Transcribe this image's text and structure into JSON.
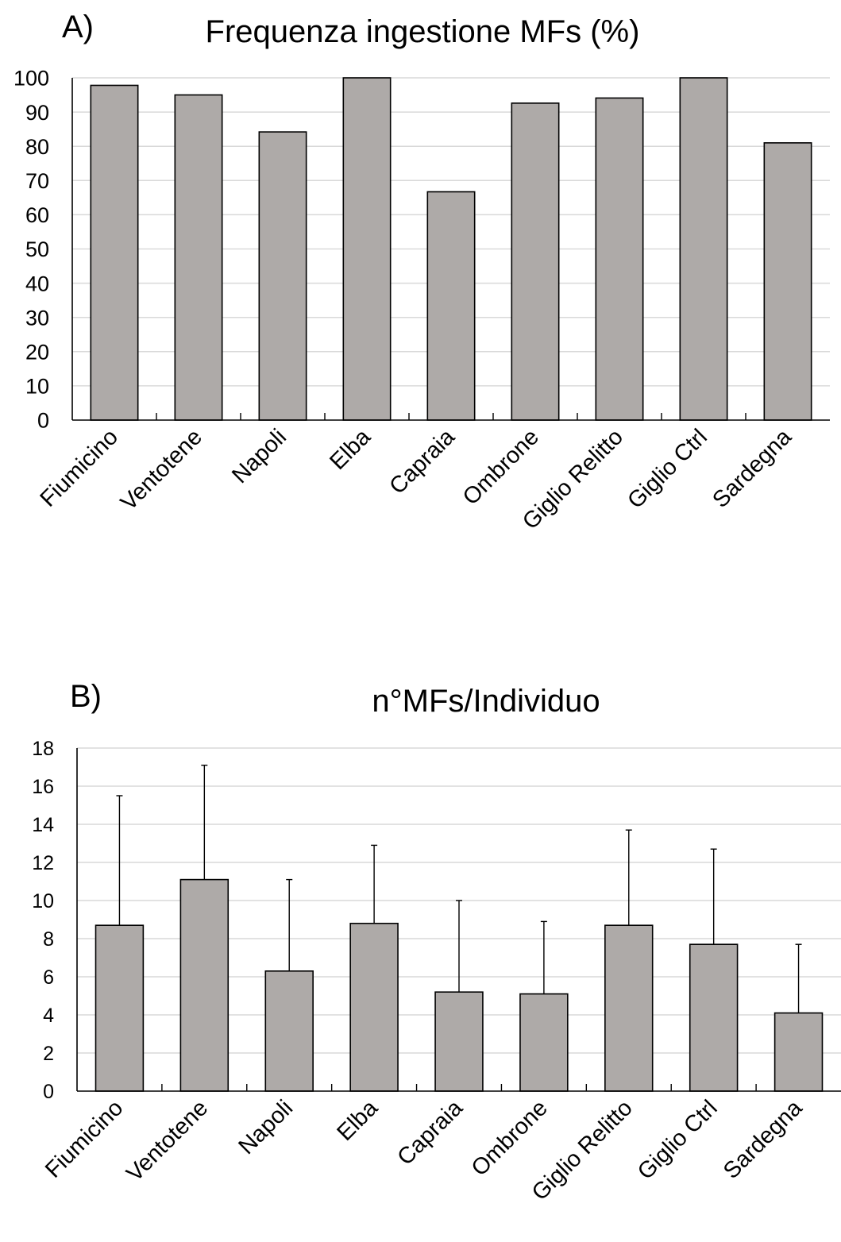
{
  "chart_data": [
    {
      "type": "bar",
      "panel_label": "A)",
      "title": "Frequenza ingestione MFs (%)",
      "xlabel": "",
      "ylabel": "",
      "categories": [
        "Fiumicino",
        "Ventotene",
        "Napoli",
        "Elba",
        "Capraia",
        "Ombrone",
        "Giglio Relitto",
        "Giglio Ctrl",
        "Sardegna"
      ],
      "values": [
        97.8,
        95.0,
        84.2,
        100,
        66.7,
        92.6,
        94.1,
        100,
        81.0
      ],
      "ylim": [
        0,
        100
      ],
      "yticks": [
        "0",
        "10",
        "20",
        "30",
        "40",
        "50",
        "60",
        "70",
        "80",
        "90",
        "100"
      ],
      "grid": true,
      "legend": "none",
      "bar_color": "#aeaaa8"
    },
    {
      "type": "bar",
      "panel_label": "B)",
      "title": "n°MFs/Individuo",
      "xlabel": "",
      "ylabel": "",
      "categories": [
        "Fiumicino",
        "Ventotene",
        "Napoli",
        "Elba",
        "Capraia",
        "Ombrone",
        "Giglio Relitto",
        "Giglio Ctrl",
        "Sardegna"
      ],
      "values": [
        8.7,
        11.1,
        6.3,
        8.8,
        5.2,
        5.1,
        8.7,
        7.7,
        4.1
      ],
      "error_upper": [
        15.5,
        17.1,
        11.1,
        12.9,
        10.0,
        8.9,
        13.7,
        12.7,
        7.7
      ],
      "ylim": [
        0,
        18
      ],
      "yticks": [
        "0",
        "2",
        "4",
        "6",
        "8",
        "10",
        "12",
        "14",
        "16",
        "18"
      ],
      "grid": true,
      "legend": "none",
      "bar_color": "#aeaaa8"
    }
  ]
}
